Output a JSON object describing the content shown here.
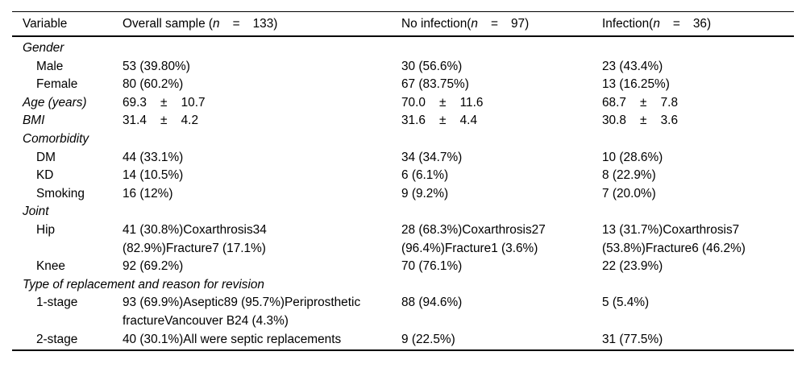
{
  "table": {
    "header": {
      "variable": "Variable",
      "columns": [
        {
          "label": "Overall sample (",
          "n": "n",
          "eq": "=",
          "count": "133)"
        },
        {
          "label": "No infection(",
          "n": "n",
          "eq": "=",
          "count": "97)"
        },
        {
          "label": "Infection(",
          "n": "n",
          "eq": "=",
          "count": "36)"
        }
      ]
    },
    "rows": [
      {
        "label": "Gender",
        "style": "section",
        "cells": [
          "",
          "",
          ""
        ]
      },
      {
        "label": "Male",
        "style": "item",
        "cells": [
          "53 (39.80%)",
          "30 (56.6%)",
          "23 (43.4%)"
        ]
      },
      {
        "label": "Female",
        "style": "item",
        "cells": [
          "80 (60.2%)",
          "67 (83.75%)",
          "13 (16.25%)"
        ]
      },
      {
        "label": "Age (years)",
        "style": "section",
        "cells": [
          "69.3    ±    10.7",
          "70.0    ±    11.6",
          "68.7    ±    7.8"
        ]
      },
      {
        "label": "BMI",
        "style": "section",
        "cells": [
          "31.4    ±    4.2",
          "31.6    ±    4.4",
          "30.8    ±    3.6"
        ]
      },
      {
        "label": "Comorbidity",
        "style": "section",
        "cells": [
          "",
          "",
          ""
        ]
      },
      {
        "label": "DM",
        "style": "item",
        "cells": [
          "44 (33.1%)",
          "34 (34.7%)",
          "10 (28.6%)"
        ]
      },
      {
        "label": "KD",
        "style": "item",
        "cells": [
          "14 (10.5%)",
          "6 (6.1%)",
          "8 (22.9%)"
        ]
      },
      {
        "label": "Smoking",
        "style": "item",
        "cells": [
          "16 (12%)",
          "9 (9.2%)",
          "7 (20.0%)"
        ]
      },
      {
        "label": "Joint",
        "style": "section",
        "cells": [
          "",
          "",
          ""
        ]
      },
      {
        "label": "Hip",
        "style": "item",
        "cells": [
          [
            "41 (30.8%)Coxarthrosis34",
            "(82.9%)Fracture7 (17.1%)"
          ],
          [
            "28 (68.3%)Coxarthrosis27",
            "(96.4%)Fracture1 (3.6%)"
          ],
          [
            "13 (31.7%)Coxarthrosis7",
            "(53.8%)Fracture6 (46.2%)"
          ]
        ]
      },
      {
        "label": "Knee",
        "style": "item",
        "cells": [
          "92 (69.2%)",
          "70 (76.1%)",
          "22 (23.9%)"
        ]
      },
      {
        "label": "Type of replacement and reason for revision",
        "style": "section",
        "cells": [
          "",
          "",
          ""
        ]
      },
      {
        "label": "1-stage",
        "style": "item",
        "cells": [
          [
            "93 (69.9%)Aseptic89 (95.7%)Periprosthetic",
            "fractureVancouver B24 (4.3%)"
          ],
          "88 (94.6%)",
          "5 (5.4%)"
        ]
      },
      {
        "label": "2-stage",
        "style": "item",
        "cells": [
          "40 (30.1%)All were septic replacements",
          "9 (22.5%)",
          "31 (77.5%)"
        ]
      }
    ]
  }
}
